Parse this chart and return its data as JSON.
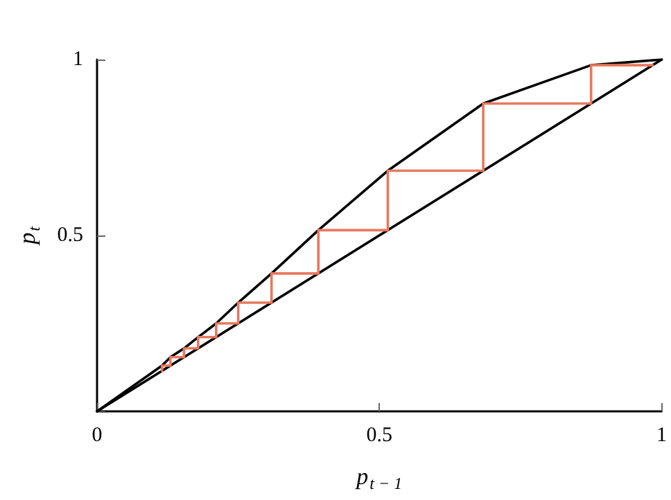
{
  "chart_data": {
    "type": "line",
    "xlabel": "p$_{t − 1}$",
    "ylabel": "p$_{t}$",
    "xlim": [
      0,
      1
    ],
    "ylim": [
      0,
      1
    ],
    "xticks": [
      0,
      0.5,
      1
    ],
    "yticks": [
      {
        "value": 0,
        "label": null
      },
      0.5,
      1
    ],
    "marker": "none",
    "line_style": "solid",
    "series": [
      {
        "color": "#000000",
        "x": [
          0,
          0.115,
          0.13,
          0.154,
          0.179,
          0.211,
          0.25,
          0.309,
          0.392,
          0.515,
          0.684,
          0.875,
          1
        ],
        "values": [
          0,
          0.13,
          0.154,
          0.179,
          0.211,
          0.25,
          0.309,
          0.392,
          0.515,
          0.684,
          0.875,
          0.984,
          1
        ]
      },
      {
        "color": "#000000",
        "x": [
          0,
          1
        ],
        "values": [
          0,
          1
        ]
      },
      {
        "color": "#e8785e",
        "x": [
          0.115,
          0.115,
          0.13,
          0.13,
          0.154,
          0.154,
          0.179,
          0.179,
          0.211,
          0.211,
          0.25,
          0.25,
          0.309,
          0.309,
          0.392,
          0.392,
          0.515,
          0.515,
          0.684,
          0.684,
          0.875,
          0.875,
          0.984
        ],
        "values": [
          0.115,
          0.13,
          0.13,
          0.154,
          0.154,
          0.179,
          0.179,
          0.211,
          0.211,
          0.25,
          0.25,
          0.309,
          0.309,
          0.392,
          0.392,
          0.515,
          0.515,
          0.684,
          0.684,
          0.875,
          0.875,
          0.984,
          0.984
        ]
      }
    ]
  }
}
